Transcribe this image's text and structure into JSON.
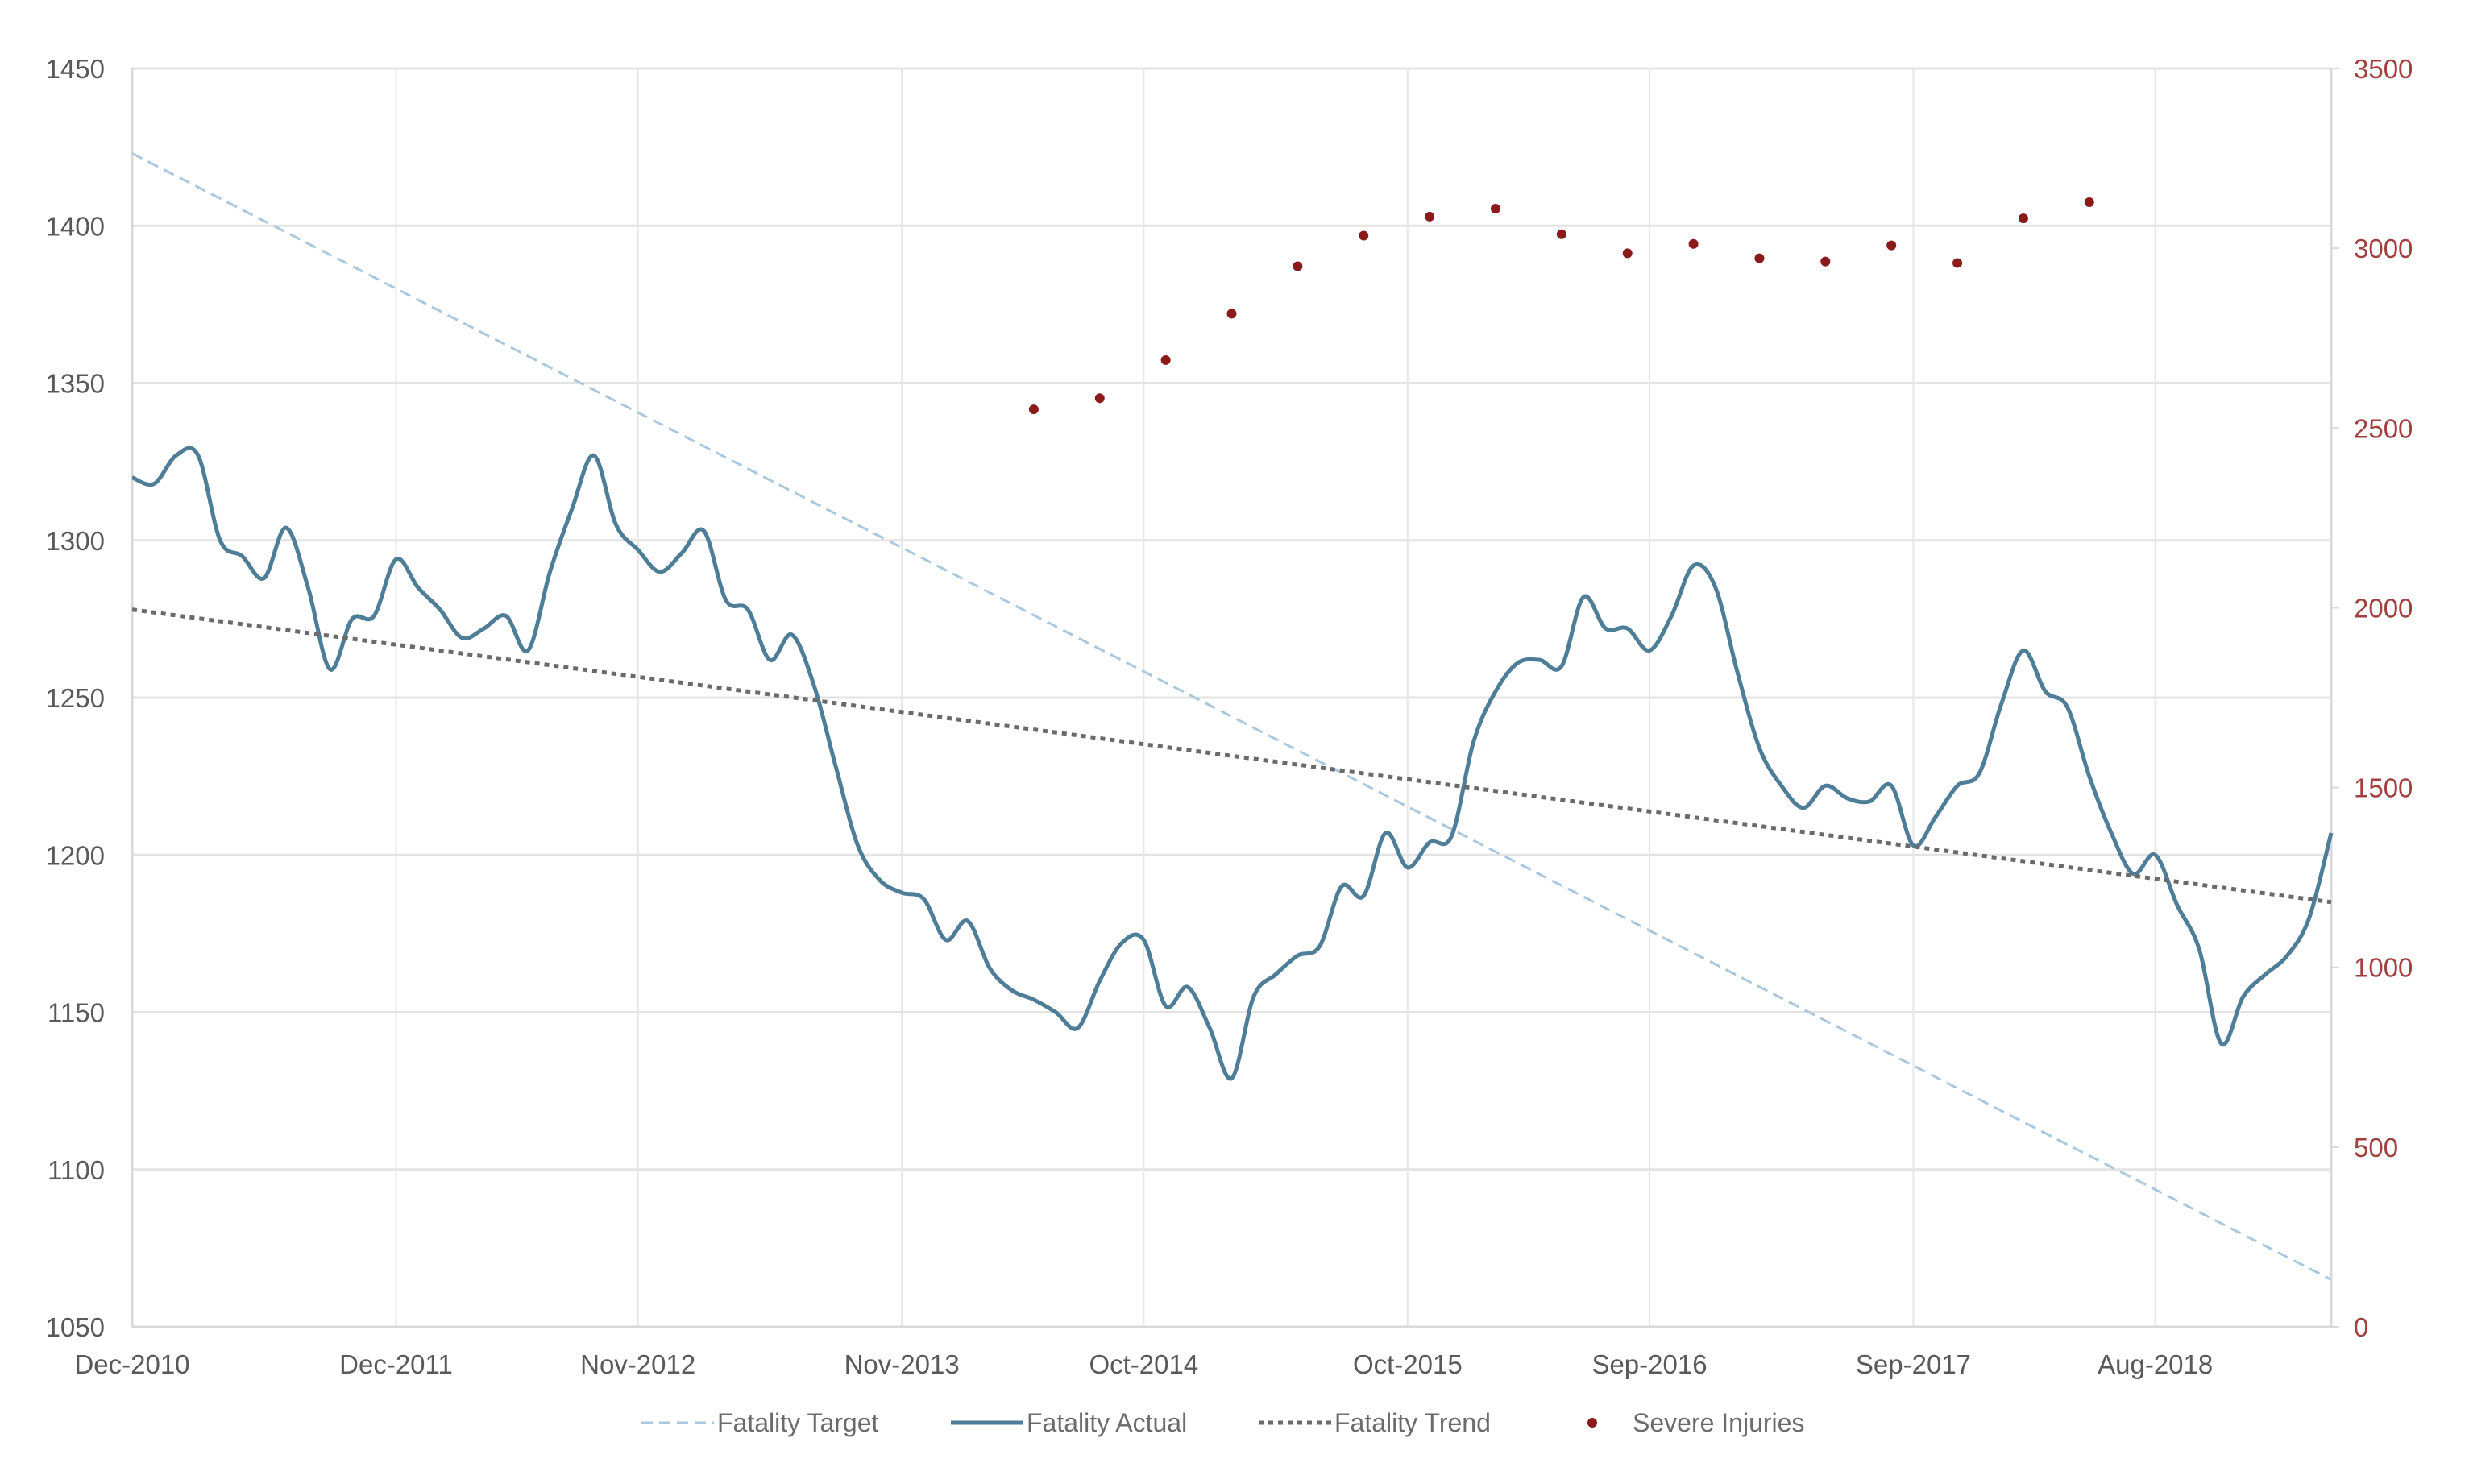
{
  "chart_data": {
    "type": "line",
    "title": "",
    "xlabel": "",
    "ylabel": "",
    "y2label": "",
    "xlim": [
      "2010-12",
      "2019-04"
    ],
    "ylim": [
      1050,
      1450
    ],
    "y2lim": [
      0,
      3500
    ],
    "grid": true,
    "legend_position": "bottom",
    "x_tick_labels": [
      {
        "date": "2010-12",
        "label": "Dec-2010"
      },
      {
        "date": "2011-12",
        "label": "Dec-2011"
      },
      {
        "date": "2012-11",
        "label": "Nov-2012"
      },
      {
        "date": "2013-11",
        "label": "Nov-2013"
      },
      {
        "date": "2014-10",
        "label": "Oct-2014"
      },
      {
        "date": "2015-10",
        "label": "Oct-2015"
      },
      {
        "date": "2016-09",
        "label": "Sep-2016"
      },
      {
        "date": "2017-09",
        "label": "Sep-2017"
      },
      {
        "date": "2018-08",
        "label": "Aug-2018"
      }
    ],
    "y_ticks": [
      1050,
      1100,
      1150,
      1200,
      1250,
      1300,
      1350,
      1400,
      1450
    ],
    "y2_ticks": [
      0,
      500,
      1000,
      1500,
      2000,
      2500,
      3000,
      3500
    ],
    "series": [
      {
        "name": "Fatality Target",
        "axis": "left",
        "style": "dashed",
        "color": "#a9c8de",
        "points": [
          [
            "2010-12",
            1423
          ],
          [
            "2019-04",
            1065
          ]
        ]
      },
      {
        "name": "Fatality Actual",
        "axis": "left",
        "style": "solid",
        "color": "#4e7d98",
        "points": [
          [
            "2010-12",
            1320
          ],
          [
            "2011-01",
            1318
          ],
          [
            "2011-02",
            1327
          ],
          [
            "2011-03",
            1327
          ],
          [
            "2011-04",
            1300
          ],
          [
            "2011-05",
            1295
          ],
          [
            "2011-06",
            1288
          ],
          [
            "2011-07",
            1304
          ],
          [
            "2011-08",
            1285
          ],
          [
            "2011-09",
            1259
          ],
          [
            "2011-10",
            1275
          ],
          [
            "2011-11",
            1276
          ],
          [
            "2011-12",
            1294
          ],
          [
            "2012-01",
            1285
          ],
          [
            "2012-02",
            1278
          ],
          [
            "2012-03",
            1269
          ],
          [
            "2012-04",
            1272
          ],
          [
            "2012-05",
            1276
          ],
          [
            "2012-06",
            1265
          ],
          [
            "2012-07",
            1290
          ],
          [
            "2012-08",
            1310
          ],
          [
            "2012-09",
            1327
          ],
          [
            "2012-10",
            1305
          ],
          [
            "2012-11",
            1297
          ],
          [
            "2012-12",
            1290
          ],
          [
            "2013-01",
            1296
          ],
          [
            "2013-02",
            1303
          ],
          [
            "2013-03",
            1281
          ],
          [
            "2013-04",
            1278
          ],
          [
            "2013-05",
            1262
          ],
          [
            "2013-06",
            1270
          ],
          [
            "2013-07",
            1254
          ],
          [
            "2013-08",
            1228
          ],
          [
            "2013-09",
            1203
          ],
          [
            "2013-10",
            1192
          ],
          [
            "2013-11",
            1188
          ],
          [
            "2013-12",
            1186
          ],
          [
            "2014-01",
            1173
          ],
          [
            "2014-02",
            1179
          ],
          [
            "2014-03",
            1164
          ],
          [
            "2014-04",
            1157
          ],
          [
            "2014-05",
            1154
          ],
          [
            "2014-06",
            1150
          ],
          [
            "2014-07",
            1145
          ],
          [
            "2014-08",
            1160
          ],
          [
            "2014-09",
            1172
          ],
          [
            "2014-10",
            1173
          ],
          [
            "2014-11",
            1152
          ],
          [
            "2014-12",
            1158
          ],
          [
            "2015-01",
            1145
          ],
          [
            "2015-02",
            1129
          ],
          [
            "2015-03",
            1155
          ],
          [
            "2015-04",
            1162
          ],
          [
            "2015-05",
            1168
          ],
          [
            "2015-06",
            1171
          ],
          [
            "2015-07",
            1190
          ],
          [
            "2015-08",
            1187
          ],
          [
            "2015-09",
            1207
          ],
          [
            "2015-10",
            1196
          ],
          [
            "2015-11",
            1204
          ],
          [
            "2015-12",
            1206
          ],
          [
            "2016-01",
            1236
          ],
          [
            "2016-02",
            1252
          ],
          [
            "2016-03",
            1261
          ],
          [
            "2016-04",
            1262
          ],
          [
            "2016-05",
            1260
          ],
          [
            "2016-06",
            1282
          ],
          [
            "2016-07",
            1272
          ],
          [
            "2016-08",
            1272
          ],
          [
            "2016-09",
            1265
          ],
          [
            "2016-10",
            1276
          ],
          [
            "2016-11",
            1292
          ],
          [
            "2016-12",
            1285
          ],
          [
            "2017-01",
            1258
          ],
          [
            "2017-02",
            1234
          ],
          [
            "2017-03",
            1222
          ],
          [
            "2017-04",
            1215
          ],
          [
            "2017-05",
            1222
          ],
          [
            "2017-06",
            1218
          ],
          [
            "2017-07",
            1217
          ],
          [
            "2017-08",
            1222
          ],
          [
            "2017-09",
            1203
          ],
          [
            "2017-10",
            1212
          ],
          [
            "2017-11",
            1222
          ],
          [
            "2017-12",
            1226
          ],
          [
            "2018-01",
            1248
          ],
          [
            "2018-02",
            1265
          ],
          [
            "2018-03",
            1252
          ],
          [
            "2018-04",
            1247
          ],
          [
            "2018-05",
            1225
          ],
          [
            "2018-06",
            1207
          ],
          [
            "2018-07",
            1194
          ],
          [
            "2018-08",
            1200
          ],
          [
            "2018-09",
            1184
          ],
          [
            "2018-10",
            1170
          ],
          [
            "2018-11",
            1140
          ],
          [
            "2018-12",
            1155
          ],
          [
            "2019-01",
            1162
          ],
          [
            "2019-02",
            1168
          ],
          [
            "2019-03",
            1180
          ],
          [
            "2019-04",
            1207
          ]
        ]
      },
      {
        "name": "Fatality Trend",
        "axis": "left",
        "style": "dotted",
        "color": "#6a6a6a",
        "points": [
          [
            "2010-12",
            1278
          ],
          [
            "2019-04",
            1185
          ]
        ]
      },
      {
        "name": "Severe Injuries",
        "axis": "right",
        "style": "markers",
        "color": "#8b1a1a",
        "points": [
          [
            "2014-05",
            2552
          ],
          [
            "2014-08",
            2583
          ],
          [
            "2014-11",
            2689
          ],
          [
            "2015-02",
            2818
          ],
          [
            "2015-05",
            2950
          ],
          [
            "2015-08",
            3035
          ],
          [
            "2015-11",
            3088
          ],
          [
            "2016-02",
            3110
          ],
          [
            "2016-05",
            3039
          ],
          [
            "2016-08",
            2986
          ],
          [
            "2016-11",
            3012
          ],
          [
            "2017-02",
            2972
          ],
          [
            "2017-05",
            2963
          ],
          [
            "2017-08",
            3008
          ],
          [
            "2017-11",
            2959
          ],
          [
            "2018-02",
            3083
          ],
          [
            "2018-05",
            3128
          ]
        ]
      }
    ]
  }
}
